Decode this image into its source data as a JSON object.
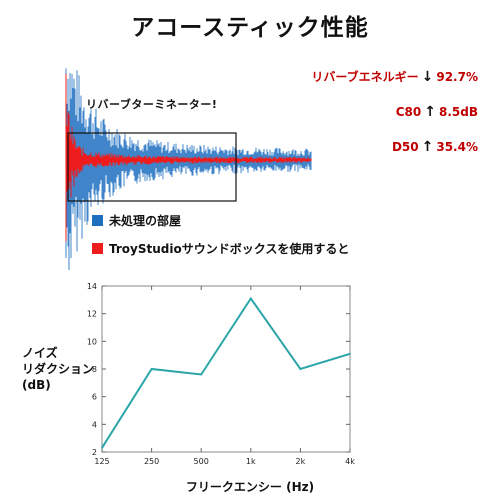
{
  "title": "アコースティック性能",
  "stats": [
    {
      "label": "リバーブエネルギー",
      "arrow": "↓",
      "value": "92.7%"
    },
    {
      "label": "C80",
      "arrow": "↑",
      "value": "8.5dB"
    },
    {
      "label": "D50",
      "arrow": "↑",
      "value": "35.4%"
    }
  ],
  "waveform": {
    "callout": "リバーブターミネーター!",
    "legend": [
      {
        "label": "未処理の部屋",
        "color": "#1f6fbf"
      },
      {
        "label": "TroyStudioサウンドボックスを使用すると",
        "color": "#ee1c1c"
      }
    ]
  },
  "chart_data": {
    "type": "line",
    "categories": [
      "125",
      "250",
      "500",
      "1k",
      "2k",
      "4k"
    ],
    "series": [
      {
        "values": [
          2.3,
          8.0,
          7.6,
          13.1,
          8.0,
          9.1
        ],
        "color": "#2aa5a8"
      }
    ],
    "ylim": [
      2,
      14
    ],
    "yticks": [
      "2",
      "4",
      "6",
      "8",
      "10",
      "12",
      "14"
    ],
    "xlabel": "フリークエンシー (Hz)",
    "ylabel": [
      "ノイズ",
      "リダクション",
      "(dB)"
    ],
    "grid": false
  }
}
